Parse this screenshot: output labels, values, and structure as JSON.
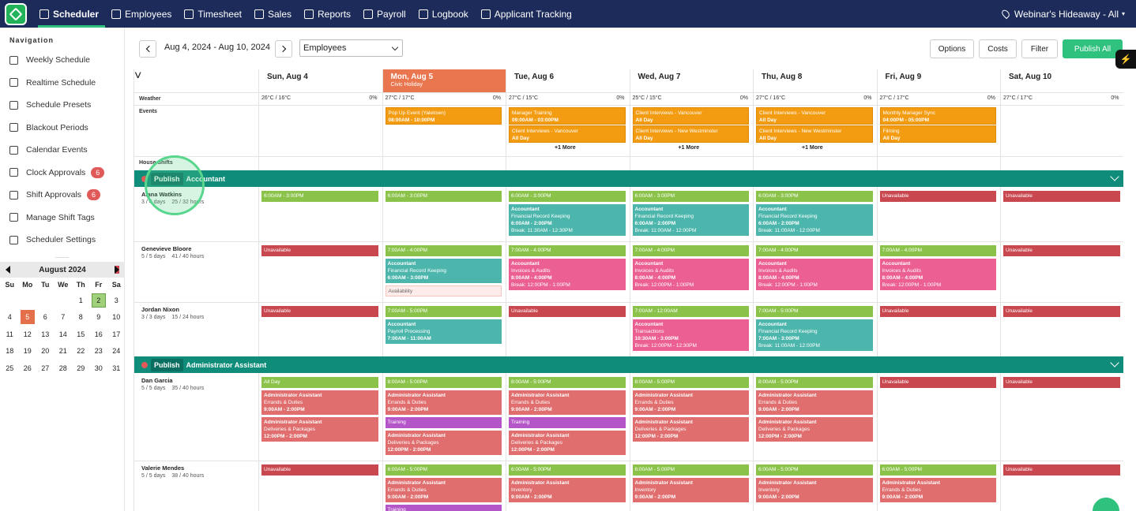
{
  "topnav": {
    "items": [
      {
        "label": "Scheduler",
        "icon": "calendar-icon",
        "active": true
      },
      {
        "label": "Employees",
        "icon": "person-icon"
      },
      {
        "label": "Timesheet",
        "icon": "clock-icon"
      },
      {
        "label": "Sales",
        "icon": "sales-icon"
      },
      {
        "label": "Reports",
        "icon": "chart-icon"
      },
      {
        "label": "Payroll",
        "icon": "money-icon"
      },
      {
        "label": "Logbook",
        "icon": "book-icon"
      },
      {
        "label": "Applicant Tracking",
        "icon": "applicant-icon"
      }
    ],
    "location": "Webinar's Hideaway - All"
  },
  "sidebar": {
    "title": "Navigation",
    "items": [
      {
        "label": "Weekly Schedule",
        "icon": "calendar-icon"
      },
      {
        "label": "Realtime Schedule",
        "icon": "calendar-clock-icon"
      },
      {
        "label": "Schedule Presets",
        "icon": "preset-icon"
      },
      {
        "label": "Blackout Periods",
        "icon": "blackout-icon"
      },
      {
        "label": "Calendar Events",
        "icon": "event-icon"
      },
      {
        "label": "Clock Approvals",
        "icon": "clock-icon",
        "badge": "6"
      },
      {
        "label": "Shift Approvals",
        "icon": "shift-icon",
        "badge": "6"
      },
      {
        "label": "Manage Shift Tags",
        "icon": "tag-icon"
      },
      {
        "label": "Scheduler Settings",
        "icon": "gear-icon"
      }
    ]
  },
  "minical": {
    "month": "August 2024",
    "dow": [
      "Su",
      "Mo",
      "Tu",
      "We",
      "Th",
      "Fr",
      "Sa"
    ],
    "days": [
      "",
      "",
      "",
      "",
      "1",
      "2",
      "3",
      "4",
      "5",
      "6",
      "7",
      "8",
      "9",
      "10",
      "11",
      "12",
      "13",
      "14",
      "15",
      "16",
      "17",
      "18",
      "19",
      "20",
      "21",
      "22",
      "23",
      "24",
      "25",
      "26",
      "27",
      "28",
      "29",
      "30",
      "31"
    ],
    "today": "5",
    "selected": "2"
  },
  "toolbar": {
    "date_range": "Aug 4, 2024 - Aug 10, 2024",
    "view_select": "Employees",
    "options": "Options",
    "costs": "Costs",
    "filter": "Filter",
    "publish_all": "Publish All"
  },
  "days": [
    {
      "label": "Sun, Aug 4",
      "weather": "26°C / 16°C",
      "precip": "0%"
    },
    {
      "label": "Mon, Aug 5",
      "sub": "Civic Holiday",
      "weather": "27°C / 17°C",
      "precip": "0%",
      "today": true
    },
    {
      "label": "Tue, Aug 6",
      "weather": "27°C / 15°C",
      "precip": "0%"
    },
    {
      "label": "Wed, Aug 7",
      "weather": "25°C / 15°C",
      "precip": "0%"
    },
    {
      "label": "Thu, Aug 8",
      "weather": "27°C / 16°C",
      "precip": "0%"
    },
    {
      "label": "Fri, Aug 9",
      "weather": "27°C / 17°C",
      "precip": "0%"
    },
    {
      "label": "Sat, Aug 10",
      "weather": "27°C / 17°C",
      "precip": "0%"
    }
  ],
  "rows": {
    "weather": "Weather",
    "events": "Events",
    "house_shifts": "House Shifts"
  },
  "events": [
    {
      "day": 1,
      "slot": 0,
      "title": "Pop Up Event (Yaletown)",
      "time": "08:00AM - 10:00PM"
    },
    {
      "day": 2,
      "slot": 0,
      "title": "Manager Training",
      "time": "09:00AM - 03:00PM"
    },
    {
      "day": 2,
      "slot": 1,
      "title": "Client Interviews - Vancouver",
      "time": "All Day"
    },
    {
      "day": 3,
      "slot": 0,
      "title": "Client Interviews - Vancouver",
      "time": "All Day"
    },
    {
      "day": 3,
      "slot": 1,
      "title": "Client Interviews - New Westminster",
      "time": "All Day"
    },
    {
      "day": 4,
      "slot": 0,
      "title": "Client Interviews - Vancouver",
      "time": "All Day"
    },
    {
      "day": 4,
      "slot": 1,
      "title": "Client Interviews - New Westminster",
      "time": "All Day"
    },
    {
      "day": 5,
      "slot": 0,
      "title": "Monthly Manager Sync",
      "time": "04:00PM - 05:00PM"
    },
    {
      "day": 5,
      "slot": 1,
      "title": "Filming",
      "time": "All Day"
    }
  ],
  "more_label": "+1 More",
  "more_days": [
    2,
    3,
    4
  ],
  "sections": [
    {
      "publish": "Publish",
      "name": "Accountant",
      "employees": [
        {
          "name": "Alana Watkins",
          "days": "3 / 4 days",
          "hours": "25 / 32 hours",
          "cells": [
            [
              {
                "c": "g",
                "l": [
                  "6:00AM - 3:00PM"
                ]
              }
            ],
            [
              {
                "c": "g",
                "l": [
                  "6:00AM - 3:00PM"
                ]
              }
            ],
            [
              {
                "c": "g",
                "l": [
                  "6:00AM - 3:00PM"
                ]
              },
              {
                "c": "t",
                "b": "Accountant",
                "l": [
                  "Financial Record Keeping",
                  "!6:00AM - 2:00PM",
                  "Break: 11:30AM - 12:30PM"
                ]
              }
            ],
            [
              {
                "c": "g",
                "l": [
                  "6:00AM - 3:00PM"
                ]
              },
              {
                "c": "t",
                "b": "Accountant",
                "l": [
                  "Financial Record Keeping",
                  "!6:00AM - 2:00PM",
                  "Break: 11:00AM - 12:00PM"
                ]
              }
            ],
            [
              {
                "c": "g",
                "l": [
                  "6:00AM - 3:00PM"
                ]
              },
              {
                "c": "t",
                "b": "Accountant",
                "l": [
                  "Financial Record Keeping",
                  "!6:00AM - 2:00PM",
                  "Break: 11:00AM - 12:00PM"
                ]
              }
            ],
            [
              {
                "c": "r",
                "l": [
                  "Unavailable"
                ]
              }
            ],
            [
              {
                "c": "r",
                "l": [
                  "Unavailable"
                ]
              }
            ]
          ]
        },
        {
          "name": "Genevieve Bloore",
          "days": "5 / 5 days",
          "hours": "41 / 40 hours",
          "cells": [
            [
              {
                "c": "r",
                "l": [
                  "Unavailable"
                ]
              }
            ],
            [
              {
                "c": "g",
                "l": [
                  "7:00AM - 4:00PM"
                ]
              },
              {
                "c": "t",
                "b": "Accountant",
                "l": [
                  "Financial Record Keeping",
                  "!6:00AM - 3:00PM"
                ]
              },
              {
                "c": "av",
                "l": [
                  "Availability"
                ]
              }
            ],
            [
              {
                "c": "g",
                "l": [
                  "7:00AM - 4:00PM"
                ]
              },
              {
                "c": "p",
                "b": "Accountant",
                "l": [
                  "Invoices & Audits",
                  "!8:00AM - 4:00PM",
                  "Break: 12:00PM - 1:00PM"
                ]
              }
            ],
            [
              {
                "c": "g",
                "l": [
                  "7:00AM - 4:00PM"
                ]
              },
              {
                "c": "p",
                "b": "Accountant",
                "l": [
                  "Invoices & Audits",
                  "!8:00AM - 4:00PM",
                  "Break: 12:00PM - 1:00PM"
                ]
              }
            ],
            [
              {
                "c": "g",
                "l": [
                  "7:00AM - 4:00PM"
                ]
              },
              {
                "c": "p",
                "b": "Accountant",
                "l": [
                  "Invoices & Audits",
                  "!8:00AM - 4:00PM",
                  "Break: 12:00PM - 1:00PM"
                ]
              }
            ],
            [
              {
                "c": "g",
                "l": [
                  "7:00AM - 4:00PM"
                ]
              },
              {
                "c": "p",
                "b": "Accountant",
                "l": [
                  "Invoices & Audits",
                  "!8:00AM - 4:00PM",
                  "Break: 12:00PM - 1:00PM"
                ]
              }
            ],
            [
              {
                "c": "r",
                "l": [
                  "Unavailable"
                ]
              }
            ]
          ]
        },
        {
          "name": "Jordan Nixon",
          "days": "3 / 3 days",
          "hours": "15 / 24 hours",
          "cells": [
            [
              {
                "c": "r",
                "l": [
                  "Unavailable"
                ]
              }
            ],
            [
              {
                "c": "g",
                "l": [
                  "7:00AM - 5:00PM"
                ]
              },
              {
                "c": "t",
                "b": "Accountant",
                "l": [
                  "Payroll Processing",
                  "!7:00AM - 11:00AM"
                ]
              }
            ],
            [
              {
                "c": "r",
                "l": [
                  "Unavailable"
                ]
              }
            ],
            [
              {
                "c": "g",
                "l": [
                  "7:00AM - 12:00AM"
                ]
              },
              {
                "c": "p",
                "b": "Accountant",
                "l": [
                  "Transactions",
                  "!10:30AM - 3:00PM",
                  "Break: 12:00PM - 12:30PM"
                ]
              }
            ],
            [
              {
                "c": "g",
                "l": [
                  "7:00AM - 5:00PM"
                ]
              },
              {
                "c": "t",
                "b": "Accountant",
                "l": [
                  "Financial Record Keeping",
                  "!7:00AM - 3:00PM",
                  "Break: 11:00AM - 12:00PM"
                ]
              }
            ],
            [
              {
                "c": "r",
                "l": [
                  "Unavailable"
                ]
              }
            ],
            [
              {
                "c": "r",
                "l": [
                  "Unavailable"
                ]
              }
            ]
          ]
        }
      ]
    },
    {
      "publish": "Publish",
      "name": "Administrator Assistant",
      "employees": [
        {
          "name": "Dan Garcia",
          "days": "5 / 5 days",
          "hours": "35 / 40 hours",
          "cells": [
            [
              {
                "c": "g",
                "l": [
                  "All Day"
                ]
              },
              {
                "c": "a",
                "b": "Administrator Assistant",
                "l": [
                  "Errands & Duties",
                  "!9:00AM - 2:00PM"
                ]
              },
              {
                "c": "a",
                "b": "Administrator Assistant",
                "l": [
                  "Deliveries & Packages",
                  "!12:00PM - 2:00PM"
                ]
              }
            ],
            [
              {
                "c": "g",
                "l": [
                  "8:00AM - 5:00PM"
                ]
              },
              {
                "c": "a",
                "b": "Administrator Assistant",
                "l": [
                  "Errands & Duties",
                  "!9:00AM - 2:00PM"
                ]
              },
              {
                "c": "v",
                "l": [
                  "Training"
                ]
              },
              {
                "c": "a",
                "b": "Administrator Assistant",
                "l": [
                  "Deliveries & Packages",
                  "!12:00PM - 2:00PM"
                ]
              }
            ],
            [
              {
                "c": "g",
                "l": [
                  "8:00AM - 5:00PM"
                ]
              },
              {
                "c": "a",
                "b": "Administrator Assistant",
                "l": [
                  "Errands & Duties",
                  "!9:00AM - 2:00PM"
                ]
              },
              {
                "c": "v",
                "l": [
                  "Training"
                ]
              },
              {
                "c": "a",
                "b": "Administrator Assistant",
                "l": [
                  "Deliveries & Packages",
                  "!12:00PM - 2:00PM"
                ]
              }
            ],
            [
              {
                "c": "g",
                "l": [
                  "8:00AM - 5:00PM"
                ]
              },
              {
                "c": "a",
                "b": "Administrator Assistant",
                "l": [
                  "Errands & Duties",
                  "!9:00AM - 2:00PM"
                ]
              },
              {
                "c": "a",
                "b": "Administrator Assistant",
                "l": [
                  "Deliveries & Packages",
                  "!12:00PM - 2:00PM"
                ]
              }
            ],
            [
              {
                "c": "g",
                "l": [
                  "8:00AM - 5:00PM"
                ]
              },
              {
                "c": "a",
                "b": "Administrator Assistant",
                "l": [
                  "Errands & Duties",
                  "!9:00AM - 2:00PM"
                ]
              },
              {
                "c": "a",
                "b": "Administrator Assistant",
                "l": [
                  "Deliveries & Packages",
                  "!12:00PM - 2:00PM"
                ]
              }
            ],
            [
              {
                "c": "r",
                "l": [
                  "Unavailable"
                ]
              }
            ],
            [
              {
                "c": "r",
                "l": [
                  "Unavailable"
                ]
              }
            ]
          ]
        },
        {
          "name": "Valerie Mendes",
          "days": "5 / 5 days",
          "hours": "38 / 40 hours",
          "cells": [
            [
              {
                "c": "r",
                "l": [
                  "Unavailable"
                ]
              }
            ],
            [
              {
                "c": "g",
                "l": [
                  "6:00AM - 5:00PM"
                ]
              },
              {
                "c": "a",
                "b": "Administrator Assistant",
                "l": [
                  "Errands & Duties",
                  "!9:00AM - 2:00PM"
                ]
              },
              {
                "c": "v",
                "l": [
                  "Training"
                ]
              }
            ],
            [
              {
                "c": "g",
                "l": [
                  "6:00AM - 5:00PM"
                ]
              },
              {
                "c": "a",
                "b": "Administrator Assistant",
                "l": [
                  "Inventory",
                  "!9:00AM - 2:00PM"
                ]
              }
            ],
            [
              {
                "c": "g",
                "l": [
                  "6:00AM - 5:00PM"
                ]
              },
              {
                "c": "a",
                "b": "Administrator Assistant",
                "l": [
                  "Inventory",
                  "!9:00AM - 2:00PM"
                ]
              }
            ],
            [
              {
                "c": "g",
                "l": [
                  "6:00AM - 5:00PM"
                ]
              },
              {
                "c": "a",
                "b": "Administrator Assistant",
                "l": [
                  "Inventory",
                  "!9:00AM - 2:00PM"
                ]
              }
            ],
            [
              {
                "c": "g",
                "l": [
                  "6:00AM - 5:00PM"
                ]
              },
              {
                "c": "a",
                "b": "Administrator Assistant",
                "l": [
                  "Errands & Duties",
                  "!9:00AM - 2:00PM"
                ]
              }
            ],
            [
              {
                "c": "r",
                "l": [
                  "Unavailable"
                ]
              }
            ]
          ]
        }
      ]
    }
  ]
}
